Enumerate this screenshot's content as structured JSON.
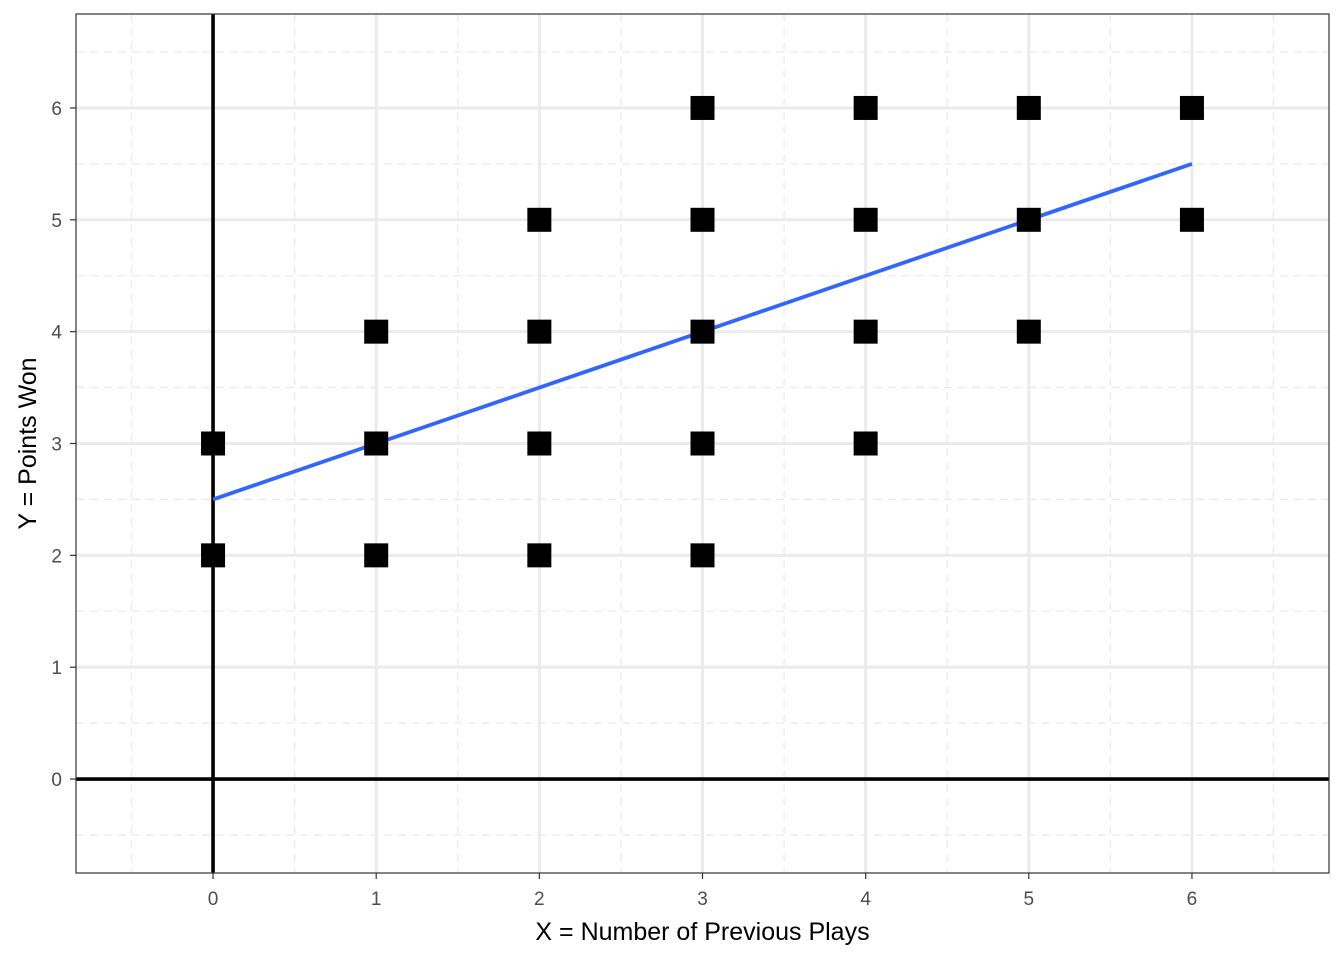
{
  "chart_data": {
    "type": "scatter",
    "title": "",
    "xlabel": "X = Number of Previous Plays",
    "ylabel": "Y = Points Won",
    "xlim": [
      -0.84,
      6.84
    ],
    "ylim": [
      -0.84,
      6.84
    ],
    "x_ticks": [
      "0",
      "1",
      "2",
      "3",
      "4",
      "5",
      "6"
    ],
    "y_ticks": [
      "0",
      "1",
      "2",
      "3",
      "4",
      "5",
      "6"
    ],
    "grid": true,
    "reference_lines": {
      "x": 0,
      "y": 0
    },
    "points": [
      {
        "x": 0,
        "y": 2
      },
      {
        "x": 0,
        "y": 3
      },
      {
        "x": 1,
        "y": 2
      },
      {
        "x": 1,
        "y": 3
      },
      {
        "x": 1,
        "y": 4
      },
      {
        "x": 2,
        "y": 2
      },
      {
        "x": 2,
        "y": 3
      },
      {
        "x": 2,
        "y": 4
      },
      {
        "x": 2,
        "y": 5
      },
      {
        "x": 3,
        "y": 2
      },
      {
        "x": 3,
        "y": 3
      },
      {
        "x": 3,
        "y": 4
      },
      {
        "x": 3,
        "y": 5
      },
      {
        "x": 3,
        "y": 6
      },
      {
        "x": 4,
        "y": 3
      },
      {
        "x": 4,
        "y": 4
      },
      {
        "x": 4,
        "y": 5
      },
      {
        "x": 4,
        "y": 6
      },
      {
        "x": 5,
        "y": 4
      },
      {
        "x": 5,
        "y": 5
      },
      {
        "x": 5,
        "y": 6
      },
      {
        "x": 6,
        "y": 5
      },
      {
        "x": 6,
        "y": 6
      }
    ],
    "fit_line": {
      "x": [
        0,
        6
      ],
      "y": [
        2.5,
        5.5
      ]
    },
    "colors": {
      "points": "#000000",
      "fit_line": "#3366ff",
      "grid": "#ebebeb",
      "reference_lines": "#000000",
      "panel_border": "#333333",
      "tick_labels": "#4d4d4d"
    }
  }
}
